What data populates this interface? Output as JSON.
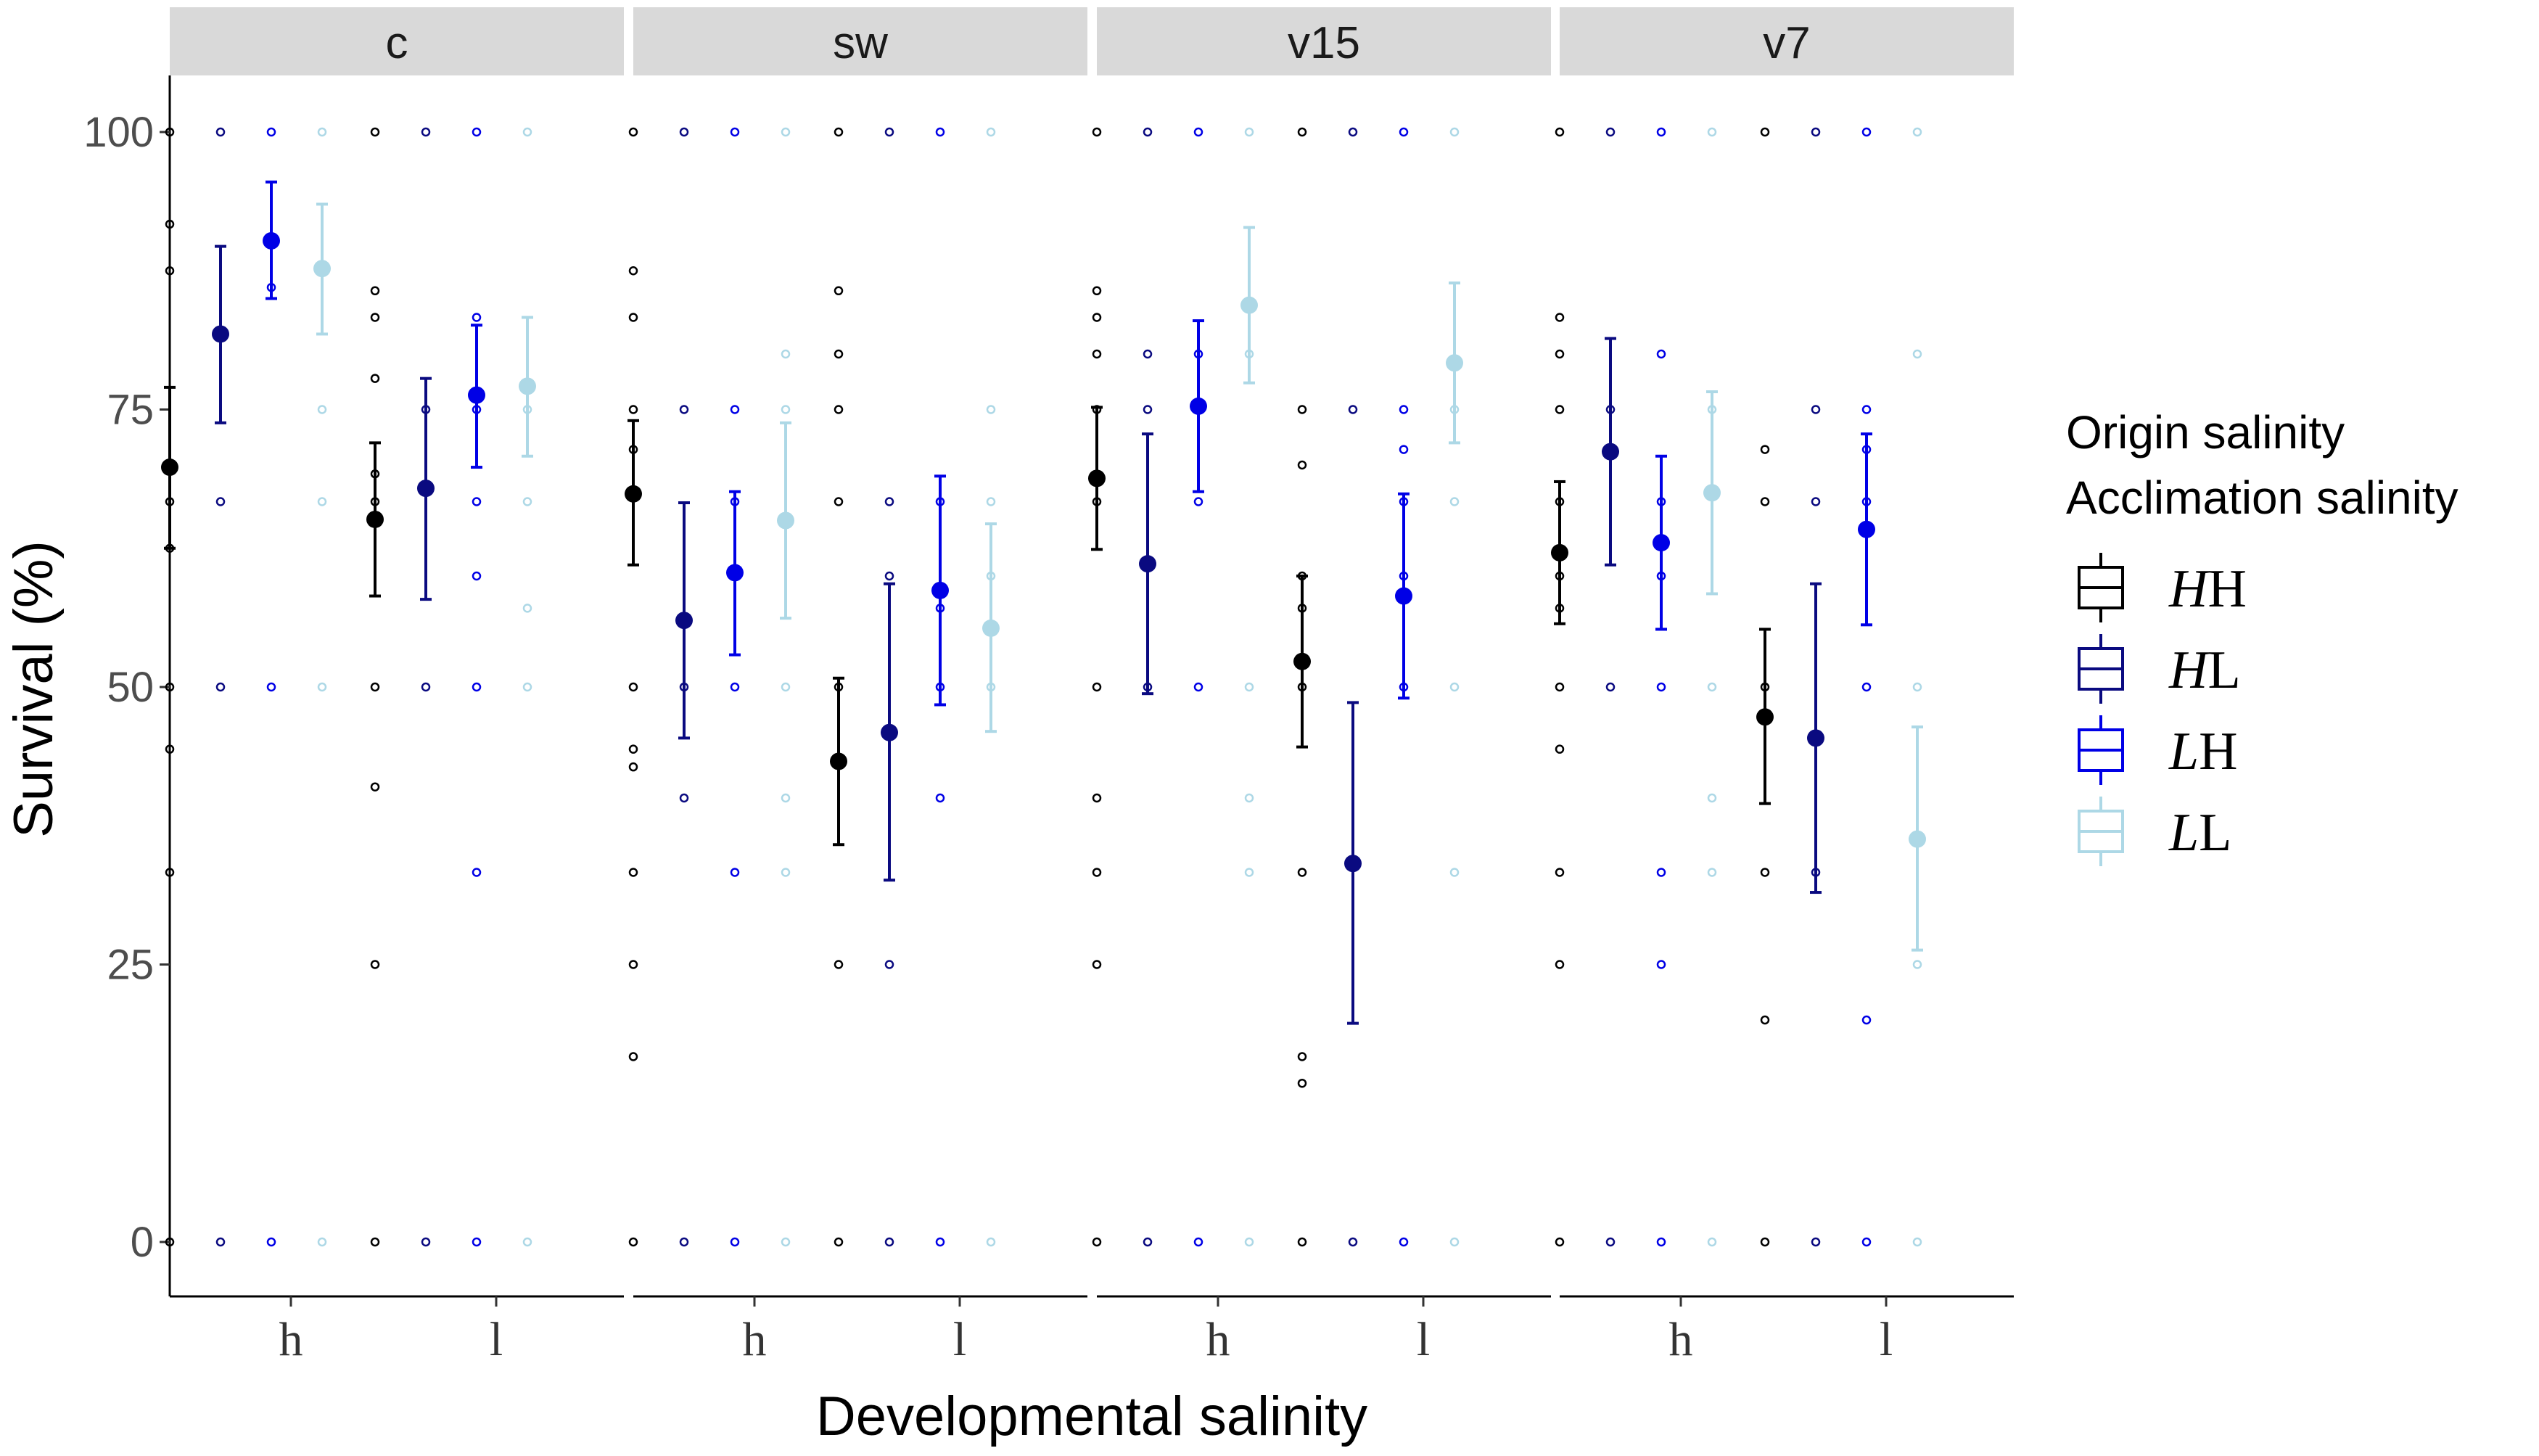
{
  "chart_data": {
    "type": "scatter",
    "description_type": "faceted point-range plot with raw data points",
    "facets": [
      "c",
      "sw",
      "v15",
      "v7"
    ],
    "xlabel": "Developmental salinity",
    "ylabel": "Survival (%)",
    "x_categories": [
      "h",
      "l"
    ],
    "ylim": [
      -5,
      105
    ],
    "yticks": [
      0,
      25,
      50,
      75,
      100
    ],
    "legend": {
      "title_line1": "Origin salinity",
      "title_line2": "Acclimation salinity",
      "placement": "right",
      "entries": [
        {
          "key": "HH",
          "italic": "H",
          "plain": "H",
          "color": "#000000"
        },
        {
          "key": "HL",
          "italic": "H",
          "plain": "L",
          "color": "#0a0a80"
        },
        {
          "key": "LH",
          "italic": "L",
          "plain": "H",
          "color": "#0000e6"
        },
        {
          "key": "LL",
          "italic": "L",
          "plain": "L",
          "color": "#add8e6"
        }
      ]
    },
    "groups": [
      "HH",
      "HL",
      "LH",
      "LL"
    ],
    "colors": {
      "HH": "#000000",
      "HL": "#0a0a80",
      "LH": "#0000e6",
      "LL": "#add8e6"
    },
    "summary": [
      {
        "facet": "c",
        "x": "h",
        "group": "HH",
        "mean": 69.8,
        "lo": 62.5,
        "hi": 77.0
      },
      {
        "facet": "c",
        "x": "h",
        "group": "HL",
        "mean": 81.8,
        "lo": 73.8,
        "hi": 89.7
      },
      {
        "facet": "c",
        "x": "h",
        "group": "LH",
        "mean": 90.2,
        "lo": 85.0,
        "hi": 95.5
      },
      {
        "facet": "c",
        "x": "h",
        "group": "LL",
        "mean": 87.7,
        "lo": 81.8,
        "hi": 93.5
      },
      {
        "facet": "c",
        "x": "l",
        "group": "HH",
        "mean": 65.1,
        "lo": 58.2,
        "hi": 72.0
      },
      {
        "facet": "c",
        "x": "l",
        "group": "HL",
        "mean": 67.9,
        "lo": 57.9,
        "hi": 77.8
      },
      {
        "facet": "c",
        "x": "l",
        "group": "LH",
        "mean": 76.3,
        "lo": 69.8,
        "hi": 82.6
      },
      {
        "facet": "c",
        "x": "l",
        "group": "LL",
        "mean": 77.1,
        "lo": 70.8,
        "hi": 83.3
      },
      {
        "facet": "sw",
        "x": "h",
        "group": "HH",
        "mean": 67.4,
        "lo": 61.0,
        "hi": 74.0
      },
      {
        "facet": "sw",
        "x": "h",
        "group": "HL",
        "mean": 56.0,
        "lo": 45.4,
        "hi": 66.6
      },
      {
        "facet": "sw",
        "x": "h",
        "group": "LH",
        "mean": 60.3,
        "lo": 52.9,
        "hi": 67.6
      },
      {
        "facet": "sw",
        "x": "h",
        "group": "LL",
        "mean": 65.0,
        "lo": 56.2,
        "hi": 73.8
      },
      {
        "facet": "sw",
        "x": "l",
        "group": "HH",
        "mean": 43.3,
        "lo": 35.8,
        "hi": 50.8
      },
      {
        "facet": "sw",
        "x": "l",
        "group": "HL",
        "mean": 45.9,
        "lo": 32.6,
        "hi": 59.3
      },
      {
        "facet": "sw",
        "x": "l",
        "group": "LH",
        "mean": 58.7,
        "lo": 48.4,
        "hi": 69.0
      },
      {
        "facet": "sw",
        "x": "l",
        "group": "LL",
        "mean": 55.3,
        "lo": 46.0,
        "hi": 64.7
      },
      {
        "facet": "v15",
        "x": "h",
        "group": "HH",
        "mean": 68.8,
        "lo": 62.4,
        "hi": 75.2
      },
      {
        "facet": "v15",
        "x": "h",
        "group": "HL",
        "mean": 61.1,
        "lo": 49.4,
        "hi": 72.8
      },
      {
        "facet": "v15",
        "x": "h",
        "group": "LH",
        "mean": 75.3,
        "lo": 67.6,
        "hi": 83.0
      },
      {
        "facet": "v15",
        "x": "h",
        "group": "LL",
        "mean": 84.4,
        "lo": 77.4,
        "hi": 91.4
      },
      {
        "facet": "v15",
        "x": "l",
        "group": "HH",
        "mean": 52.3,
        "lo": 44.6,
        "hi": 60.0
      },
      {
        "facet": "v15",
        "x": "l",
        "group": "HL",
        "mean": 34.1,
        "lo": 19.7,
        "hi": 48.6
      },
      {
        "facet": "v15",
        "x": "l",
        "group": "LH",
        "mean": 58.2,
        "lo": 49.0,
        "hi": 67.4
      },
      {
        "facet": "v15",
        "x": "l",
        "group": "LL",
        "mean": 79.2,
        "lo": 72.0,
        "hi": 86.4
      },
      {
        "facet": "v7",
        "x": "h",
        "group": "HH",
        "mean": 62.1,
        "lo": 55.7,
        "hi": 68.5
      },
      {
        "facet": "v7",
        "x": "h",
        "group": "HL",
        "mean": 71.2,
        "lo": 61.0,
        "hi": 81.4
      },
      {
        "facet": "v7",
        "x": "h",
        "group": "LH",
        "mean": 63.0,
        "lo": 55.2,
        "hi": 70.8
      },
      {
        "facet": "v7",
        "x": "h",
        "group": "LL",
        "mean": 67.5,
        "lo": 58.4,
        "hi": 76.6
      },
      {
        "facet": "v7",
        "x": "l",
        "group": "HH",
        "mean": 47.3,
        "lo": 39.5,
        "hi": 55.2
      },
      {
        "facet": "v7",
        "x": "l",
        "group": "HL",
        "mean": 45.4,
        "lo": 31.5,
        "hi": 59.3
      },
      {
        "facet": "v7",
        "x": "l",
        "group": "LH",
        "mean": 64.2,
        "lo": 55.6,
        "hi": 72.8
      },
      {
        "facet": "v7",
        "x": "l",
        "group": "LL",
        "mean": 36.3,
        "lo": 26.3,
        "hi": 46.4
      }
    ],
    "raw": {
      "c|h|HH": [
        100,
        91.7,
        87.5,
        66.7,
        62.5,
        50,
        44.4,
        33.3,
        0
      ],
      "c|h|HL": [
        100,
        66.7,
        50,
        0
      ],
      "c|h|LH": [
        100,
        86,
        50,
        0
      ],
      "c|h|LL": [
        100,
        75,
        66.7,
        50,
        0
      ],
      "c|l|HH": [
        100,
        85.7,
        83.3,
        77.8,
        69.2,
        66.7,
        50,
        41,
        25,
        0
      ],
      "c|l|HL": [
        100,
        75,
        50,
        0
      ],
      "c|l|LH": [
        100,
        83.3,
        75,
        66.7,
        60,
        50,
        33.3,
        0
      ],
      "c|l|LL": [
        100,
        75,
        66.7,
        57.1,
        50,
        0
      ],
      "sw|h|HH": [
        100,
        87.5,
        83.3,
        75,
        71.4,
        50,
        44.4,
        42.8,
        33.3,
        25,
        16.7,
        0
      ],
      "sw|h|HL": [
        100,
        75,
        50,
        40,
        0
      ],
      "sw|h|LH": [
        100,
        75,
        66.7,
        50,
        33.3,
        0
      ],
      "sw|h|LL": [
        100,
        80,
        75,
        50,
        40,
        33.3,
        0
      ],
      "sw|l|HH": [
        100,
        85.7,
        80,
        75,
        66.7,
        50,
        25,
        0
      ],
      "sw|l|HL": [
        100,
        66.7,
        60,
        25,
        0
      ],
      "sw|l|LH": [
        100,
        66.7,
        57.1,
        50,
        40,
        0
      ],
      "sw|l|LL": [
        100,
        75,
        66.7,
        60,
        50,
        0
      ],
      "v15|h|HH": [
        100,
        85.7,
        83.3,
        80,
        75,
        66.7,
        50,
        40,
        33.3,
        25,
        0
      ],
      "v15|h|HL": [
        100,
        80,
        75,
        50,
        0
      ],
      "v15|h|LH": [
        100,
        80,
        66.7,
        50,
        0
      ],
      "v15|h|LL": [
        100,
        80,
        50,
        40,
        33.3,
        0
      ],
      "v15|l|HH": [
        100,
        75,
        70,
        60,
        57.1,
        50,
        33.3,
        16.7,
        14.3,
        0
      ],
      "v15|l|HL": [
        100,
        75,
        0
      ],
      "v15|l|LH": [
        100,
        75,
        71.4,
        66.7,
        60,
        50,
        0
      ],
      "v15|l|LL": [
        100,
        75,
        66.7,
        50,
        33.3,
        0
      ],
      "v7|h|HH": [
        100,
        83.3,
        80,
        75,
        66.7,
        60,
        57.1,
        50,
        44.4,
        33.3,
        25,
        0
      ],
      "v7|h|HL": [
        100,
        75,
        50,
        0
      ],
      "v7|h|LH": [
        100,
        80,
        66.7,
        60,
        50,
        33.3,
        25,
        0
      ],
      "v7|h|LL": [
        100,
        75,
        50,
        40,
        33.3,
        0
      ],
      "v7|l|HH": [
        100,
        71.4,
        66.7,
        50,
        33.3,
        20,
        0
      ],
      "v7|l|HL": [
        100,
        75,
        66.7,
        33.3,
        0
      ],
      "v7|l|LH": [
        100,
        75,
        71.4,
        66.7,
        50,
        20,
        0
      ],
      "v7|l|LL": [
        100,
        80,
        50,
        25,
        0
      ]
    }
  }
}
